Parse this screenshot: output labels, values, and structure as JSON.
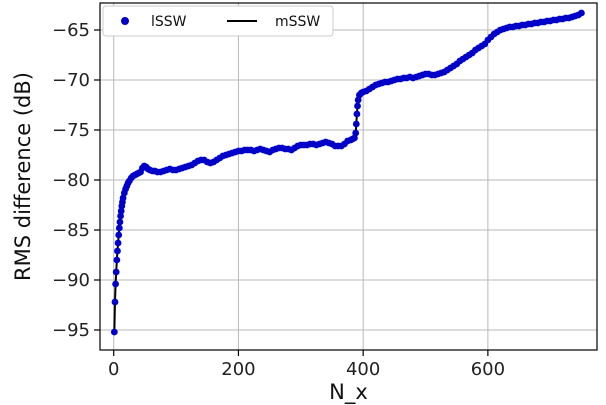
{
  "chart_data": {
    "type": "line",
    "title": "",
    "xlabel": "N_x",
    "ylabel": "RMS difference (dB)",
    "xlim": [
      -22,
      775
    ],
    "ylim": [
      -97,
      -62.3
    ],
    "xticks": [
      0,
      200,
      400,
      600
    ],
    "yticks": [
      -95,
      -90,
      -85,
      -80,
      -75,
      -70,
      -65
    ],
    "grid": true,
    "legend_position": "top-left",
    "series": [
      {
        "name": "lSSW",
        "style": "markers",
        "color": "#0000c8",
        "points": [
          [
            1,
            -95.2
          ],
          [
            2,
            -92.2
          ],
          [
            3,
            -90.4
          ],
          [
            4,
            -89.2
          ],
          [
            5,
            -88.0
          ],
          [
            6,
            -87.1
          ],
          [
            7,
            -86.3
          ],
          [
            8,
            -85.5
          ],
          [
            9,
            -84.8
          ],
          [
            10,
            -84.2
          ],
          [
            11,
            -83.6
          ],
          [
            12,
            -83.1
          ],
          [
            13,
            -82.6
          ],
          [
            14,
            -82.2
          ],
          [
            15,
            -81.8
          ],
          [
            17,
            -81.3
          ],
          [
            19,
            -80.9
          ],
          [
            21,
            -80.6
          ],
          [
            23,
            -80.3
          ],
          [
            25,
            -80.1
          ],
          [
            28,
            -79.8
          ],
          [
            31,
            -79.6
          ],
          [
            34,
            -79.5
          ],
          [
            37,
            -79.4
          ],
          [
            40,
            -79.3
          ],
          [
            43,
            -79.2
          ],
          [
            46,
            -78.8
          ],
          [
            49,
            -78.6
          ],
          [
            52,
            -78.7
          ],
          [
            55,
            -78.9
          ],
          [
            58,
            -79.0
          ],
          [
            62,
            -79.1
          ],
          [
            66,
            -79.1
          ],
          [
            70,
            -79.2
          ],
          [
            75,
            -79.2
          ],
          [
            80,
            -79.1
          ],
          [
            85,
            -79.0
          ],
          [
            90,
            -78.9
          ],
          [
            95,
            -79.0
          ],
          [
            100,
            -79.0
          ],
          [
            105,
            -78.9
          ],
          [
            110,
            -78.8
          ],
          [
            115,
            -78.7
          ],
          [
            120,
            -78.6
          ],
          [
            125,
            -78.5
          ],
          [
            130,
            -78.3
          ],
          [
            135,
            -78.1
          ],
          [
            140,
            -78.0
          ],
          [
            145,
            -78.0
          ],
          [
            150,
            -78.2
          ],
          [
            155,
            -78.3
          ],
          [
            160,
            -78.2
          ],
          [
            165,
            -78.0
          ],
          [
            170,
            -77.8
          ],
          [
            175,
            -77.6
          ],
          [
            180,
            -77.5
          ],
          [
            185,
            -77.4
          ],
          [
            190,
            -77.3
          ],
          [
            195,
            -77.2
          ],
          [
            200,
            -77.1
          ],
          [
            205,
            -77.1
          ],
          [
            210,
            -77.0
          ],
          [
            215,
            -77.0
          ],
          [
            220,
            -77.0
          ],
          [
            225,
            -77.1
          ],
          [
            230,
            -77.0
          ],
          [
            235,
            -76.9
          ],
          [
            240,
            -77.0
          ],
          [
            245,
            -77.1
          ],
          [
            250,
            -77.2
          ],
          [
            255,
            -77.0
          ],
          [
            260,
            -76.9
          ],
          [
            265,
            -76.8
          ],
          [
            270,
            -76.8
          ],
          [
            275,
            -76.9
          ],
          [
            280,
            -76.9
          ],
          [
            285,
            -77.0
          ],
          [
            290,
            -76.8
          ],
          [
            295,
            -76.6
          ],
          [
            300,
            -76.5
          ],
          [
            305,
            -76.5
          ],
          [
            310,
            -76.5
          ],
          [
            315,
            -76.4
          ],
          [
            320,
            -76.4
          ],
          [
            325,
            -76.5
          ],
          [
            330,
            -76.4
          ],
          [
            335,
            -76.3
          ],
          [
            340,
            -76.2
          ],
          [
            345,
            -76.3
          ],
          [
            350,
            -76.4
          ],
          [
            355,
            -76.6
          ],
          [
            360,
            -76.6
          ],
          [
            365,
            -76.6
          ],
          [
            370,
            -76.4
          ],
          [
            375,
            -76.1
          ],
          [
            380,
            -76.0
          ],
          [
            383,
            -75.9
          ],
          [
            386,
            -75.8
          ],
          [
            388,
            -75.3
          ],
          [
            389,
            -74.4
          ],
          [
            390,
            -73.4
          ],
          [
            391,
            -72.6
          ],
          [
            392,
            -72.0
          ],
          [
            394,
            -71.5
          ],
          [
            397,
            -71.3
          ],
          [
            400,
            -71.2
          ],
          [
            405,
            -71.1
          ],
          [
            410,
            -70.9
          ],
          [
            415,
            -70.7
          ],
          [
            420,
            -70.5
          ],
          [
            425,
            -70.4
          ],
          [
            430,
            -70.3
          ],
          [
            435,
            -70.2
          ],
          [
            440,
            -70.2
          ],
          [
            445,
            -70.1
          ],
          [
            450,
            -70.0
          ],
          [
            455,
            -69.9
          ],
          [
            460,
            -69.9
          ],
          [
            465,
            -69.8
          ],
          [
            470,
            -69.8
          ],
          [
            475,
            -69.7
          ],
          [
            480,
            -69.8
          ],
          [
            485,
            -69.7
          ],
          [
            490,
            -69.6
          ],
          [
            495,
            -69.5
          ],
          [
            500,
            -69.4
          ],
          [
            505,
            -69.4
          ],
          [
            510,
            -69.5
          ],
          [
            515,
            -69.5
          ],
          [
            520,
            -69.4
          ],
          [
            525,
            -69.3
          ],
          [
            530,
            -69.2
          ],
          [
            535,
            -69.0
          ],
          [
            540,
            -68.8
          ],
          [
            545,
            -68.6
          ],
          [
            550,
            -68.4
          ],
          [
            555,
            -68.1
          ],
          [
            560,
            -67.9
          ],
          [
            565,
            -67.7
          ],
          [
            570,
            -67.5
          ],
          [
            575,
            -67.3
          ],
          [
            580,
            -67.0
          ],
          [
            585,
            -66.8
          ],
          [
            590,
            -66.6
          ],
          [
            595,
            -66.4
          ],
          [
            600,
            -66.0
          ],
          [
            605,
            -65.7
          ],
          [
            610,
            -65.4
          ],
          [
            615,
            -65.2
          ],
          [
            620,
            -65.0
          ],
          [
            625,
            -64.9
          ],
          [
            630,
            -64.8
          ],
          [
            635,
            -64.7
          ],
          [
            640,
            -64.7
          ],
          [
            645,
            -64.6
          ],
          [
            650,
            -64.6
          ],
          [
            655,
            -64.5
          ],
          [
            660,
            -64.5
          ],
          [
            665,
            -64.4
          ],
          [
            670,
            -64.4
          ],
          [
            675,
            -64.3
          ],
          [
            680,
            -64.3
          ],
          [
            685,
            -64.2
          ],
          [
            690,
            -64.2
          ],
          [
            695,
            -64.1
          ],
          [
            700,
            -64.1
          ],
          [
            705,
            -64.0
          ],
          [
            710,
            -64.0
          ],
          [
            715,
            -63.9
          ],
          [
            720,
            -63.9
          ],
          [
            725,
            -63.8
          ],
          [
            730,
            -63.8
          ],
          [
            735,
            -63.7
          ],
          [
            740,
            -63.6
          ],
          [
            745,
            -63.5
          ],
          [
            750,
            -63.3
          ]
        ]
      },
      {
        "name": "mSSW",
        "style": "line",
        "color": "#000000",
        "points": "same as lSSW"
      }
    ]
  }
}
